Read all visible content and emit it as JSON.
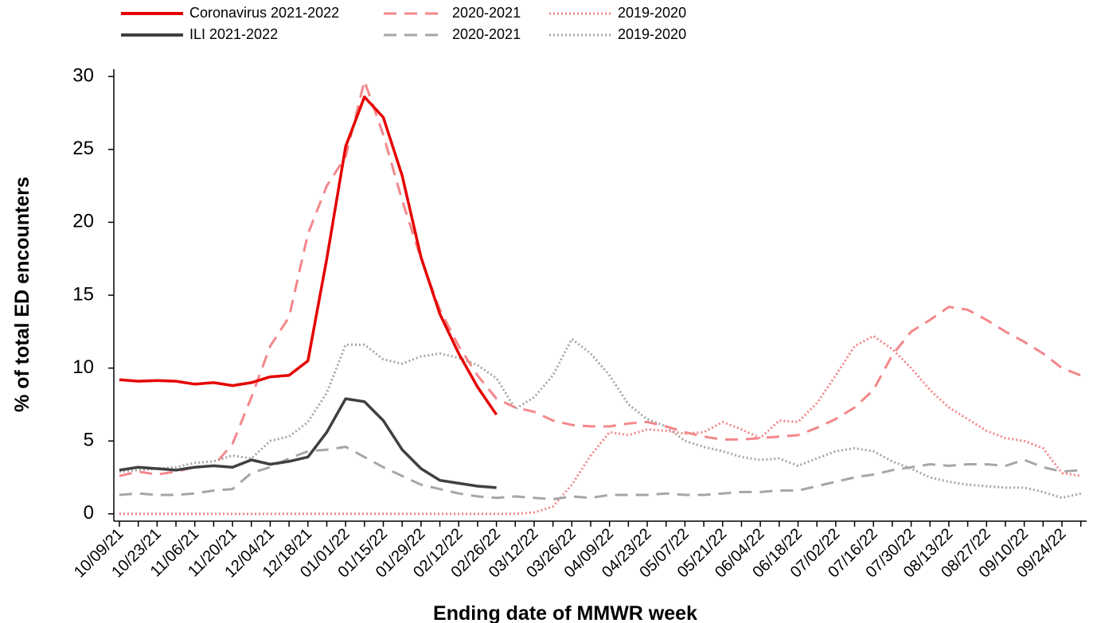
{
  "chart_data": {
    "type": "line",
    "y_label": "% of total ED encounters",
    "x_label": "Ending date of MMWR week",
    "categories": [
      "10/09/21",
      null,
      "10/23/21",
      null,
      "11/06/21",
      null,
      "11/20/21",
      null,
      "12/04/21",
      null,
      "12/18/21",
      null,
      "01/01/22",
      null,
      "01/15/22",
      null,
      "01/29/22",
      null,
      "02/12/22",
      null,
      "02/26/22",
      null,
      "03/12/22",
      null,
      "03/26/22",
      null,
      "04/09/22",
      null,
      "04/23/22",
      null,
      "05/07/22",
      null,
      "05/21/22",
      null,
      "06/04/22",
      null,
      "06/18/22",
      null,
      "07/02/22",
      null,
      "07/16/22",
      null,
      "07/30/22",
      null,
      "08/13/22",
      null,
      "08/27/22",
      null,
      "09/10/22",
      null,
      "09/24/22",
      null
    ],
    "ylim": [
      -0.5,
      30.5
    ],
    "yticks": [
      0,
      5,
      10,
      15,
      20,
      25,
      30
    ],
    "series": [
      {
        "name": "Coronavirus 2021-2022",
        "color": "#e60000",
        "dash": "solid",
        "values": [
          9.2,
          9.1,
          9.15,
          9.1,
          8.9,
          9.0,
          8.8,
          9.0,
          9.4,
          9.5,
          10.5,
          17.5,
          25.2,
          28.6,
          27.2,
          23.2,
          17.6,
          13.7,
          11.0,
          8.7,
          6.8,
          null,
          null,
          null,
          null,
          null,
          null,
          null,
          null,
          null,
          null,
          null,
          null,
          null,
          null,
          null,
          null,
          null,
          null,
          null,
          null,
          null,
          null,
          null,
          null,
          null,
          null,
          null,
          null,
          null,
          null,
          null
        ]
      },
      {
        "name": "ILI 2021-2022",
        "color": "#404040",
        "dash": "solid",
        "values": [
          3.0,
          3.2,
          3.1,
          3.0,
          3.2,
          3.3,
          3.2,
          3.7,
          3.4,
          3.6,
          3.9,
          5.6,
          7.9,
          7.7,
          6.4,
          4.4,
          3.1,
          2.3,
          2.1,
          1.9,
          1.8,
          null,
          null,
          null,
          null,
          null,
          null,
          null,
          null,
          null,
          null,
          null,
          null,
          null,
          null,
          null,
          null,
          null,
          null,
          null,
          null,
          null,
          null,
          null,
          null,
          null,
          null,
          null,
          null,
          null,
          null,
          null
        ]
      },
      {
        "name": "2020-2021",
        "color": "#f4878a",
        "dash": "dashed",
        "values": [
          2.6,
          2.9,
          2.7,
          2.9,
          3.2,
          3.3,
          4.8,
          8.0,
          11.5,
          13.5,
          19.2,
          22.5,
          24.5,
          29.7,
          26.0,
          21.5,
          17.5,
          14.0,
          11.5,
          9.5,
          7.9,
          7.3,
          7.0,
          6.4,
          6.1,
          6.0,
          6.0,
          6.2,
          6.3,
          6.0,
          5.6,
          5.3,
          5.1,
          5.1,
          5.2,
          5.3,
          5.4,
          5.9,
          6.5,
          7.3,
          8.5,
          10.9,
          12.5,
          13.3,
          14.2,
          14.0,
          13.3,
          12.5,
          11.8,
          11.0,
          10.0,
          9.5
        ]
      },
      {
        "name": "2020-2021",
        "color": "#a6a6a6",
        "dash": "dashed",
        "values": [
          1.3,
          1.4,
          1.3,
          1.3,
          1.4,
          1.6,
          1.7,
          2.8,
          3.2,
          3.8,
          4.3,
          4.4,
          4.6,
          3.9,
          3.2,
          2.6,
          2.0,
          1.7,
          1.4,
          1.2,
          1.1,
          1.2,
          1.1,
          1.0,
          1.2,
          1.1,
          1.3,
          1.3,
          1.3,
          1.4,
          1.3,
          1.3,
          1.4,
          1.5,
          1.5,
          1.6,
          1.6,
          1.9,
          2.2,
          2.5,
          2.7,
          3.0,
          3.2,
          3.4,
          3.3,
          3.4,
          3.4,
          3.3,
          3.7,
          3.2,
          2.9,
          3.0
        ]
      },
      {
        "name": "2019-2020",
        "color": "#f4878a",
        "dash": "dotted",
        "values": [
          0,
          0,
          0,
          0,
          0,
          0,
          0,
          0,
          0,
          0,
          0,
          0,
          0,
          0,
          0,
          0,
          0,
          0,
          0,
          0,
          0,
          0,
          0.1,
          0.5,
          2.0,
          4.0,
          5.6,
          5.4,
          5.8,
          5.7,
          5.5,
          5.6,
          6.3,
          5.8,
          5.2,
          6.4,
          6.3,
          7.6,
          9.5,
          11.5,
          12.2,
          11.3,
          10.0,
          8.5,
          7.3,
          6.5,
          5.7,
          5.2,
          5.0,
          4.5,
          2.8,
          2.6
        ]
      },
      {
        "name": "2019-2020",
        "color": "#a6a6a6",
        "dash": "dotted",
        "values": [
          2.9,
          3.0,
          3.1,
          3.2,
          3.5,
          3.6,
          4.0,
          3.8,
          5.0,
          5.3,
          6.3,
          8.3,
          11.6,
          11.6,
          10.6,
          10.3,
          10.8,
          11.0,
          10.7,
          10.2,
          9.3,
          7.2,
          8.0,
          9.5,
          12.0,
          11.0,
          9.5,
          7.5,
          6.5,
          6.0,
          5.0,
          4.6,
          4.3,
          3.9,
          3.7,
          3.8,
          3.3,
          3.8,
          4.3,
          4.5,
          4.3,
          3.6,
          3.1,
          2.5,
          2.2,
          2.0,
          1.9,
          1.8,
          1.8,
          1.5,
          1.1,
          1.4
        ]
      }
    ]
  }
}
